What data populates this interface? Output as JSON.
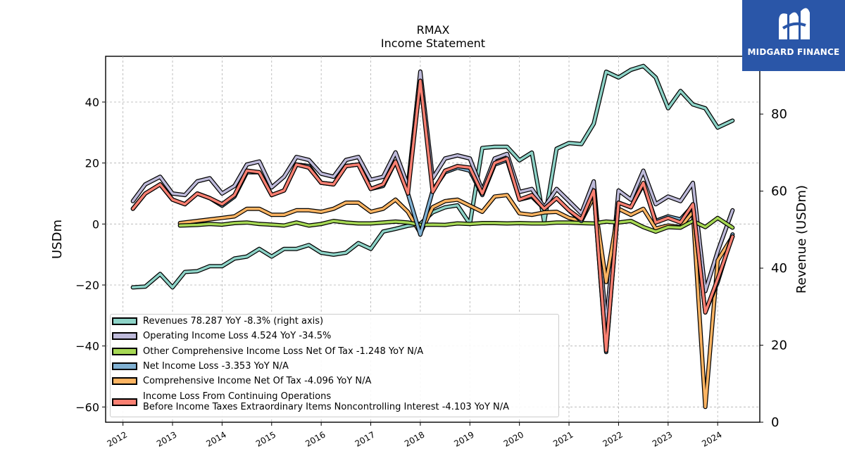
{
  "title": "RMAX",
  "subtitle": "Income Statement",
  "logo": {
    "text": "MIDGARD FINANCE"
  },
  "chart_data": {
    "type": "line",
    "ylabel": "USDm",
    "y2label": "Revenue (USDm)",
    "ylim": [
      -65,
      55
    ],
    "y2lim": [
      0,
      95
    ],
    "yticks": [
      -60,
      -40,
      -20,
      0,
      20,
      40
    ],
    "y2ticks": [
      0,
      20,
      40,
      60,
      80
    ],
    "xlim": [
      2011.65,
      2024.85
    ],
    "xticks": [
      2012,
      2013,
      2014,
      2015,
      2016,
      2017,
      2018,
      2019,
      2020,
      2021,
      2022,
      2023,
      2024
    ],
    "grid": true,
    "legend_position": "lower-left",
    "series": [
      {
        "name": "Revenues  78.287 YoY -8.3% (right axis)",
        "axis": "right",
        "color": "#8dd3c7",
        "x": [
          2012.2,
          2012.45,
          2012.75,
          2013.0,
          2013.25,
          2013.5,
          2013.75,
          2014.0,
          2014.25,
          2014.5,
          2014.75,
          2015.0,
          2015.25,
          2015.5,
          2015.75,
          2016.0,
          2016.25,
          2016.5,
          2016.75,
          2017.0,
          2017.25,
          2017.5,
          2017.75,
          2018.0,
          2018.25,
          2018.5,
          2018.75,
          2019.0,
          2019.25,
          2019.5,
          2019.75,
          2020.0,
          2020.25,
          2020.5,
          2020.75,
          2021.0,
          2021.25,
          2021.5,
          2021.75,
          2022.0,
          2022.25,
          2022.5,
          2022.75,
          2023.0,
          2023.25,
          2023.5,
          2023.75,
          2024.0,
          2024.3
        ],
        "values": [
          35,
          35.2,
          38.5,
          35,
          39,
          39.2,
          40.5,
          40.5,
          42.5,
          43,
          45,
          43,
          45,
          45,
          46,
          44,
          43.5,
          44,
          46.5,
          45,
          49.5,
          50.2,
          51,
          51.5,
          54.5,
          55.8,
          56.3,
          51.5,
          71.2,
          71.5,
          71.5,
          68,
          70,
          52,
          71,
          72.5,
          72.2,
          77.5,
          91,
          89.5,
          91.5,
          92.5,
          89.5,
          81.5,
          86,
          82.5,
          81.5,
          76.5,
          78.3
        ]
      },
      {
        "name": "Operating Income Loss  4.524 YoY -34.5%",
        "axis": "left",
        "color": "#bebada",
        "x": [
          2012.2,
          2012.45,
          2012.75,
          2013.0,
          2013.25,
          2013.5,
          2013.75,
          2014.0,
          2014.25,
          2014.5,
          2014.75,
          2015.0,
          2015.25,
          2015.5,
          2015.75,
          2016.0,
          2016.25,
          2016.5,
          2016.75,
          2017.0,
          2017.25,
          2017.5,
          2017.75,
          2018.0,
          2018.25,
          2018.5,
          2018.75,
          2019.0,
          2019.25,
          2019.5,
          2019.75,
          2020.0,
          2020.25,
          2020.5,
          2020.75,
          2021.0,
          2021.25,
          2021.5,
          2021.75,
          2022.0,
          2022.25,
          2022.5,
          2022.75,
          2023.0,
          2023.25,
          2023.5,
          2023.75,
          2024.0,
          2024.3
        ],
        "values": [
          7.5,
          13,
          15.5,
          10,
          9.5,
          14,
          15,
          10,
          12.5,
          19.5,
          20.5,
          12,
          15.5,
          22,
          21,
          16.5,
          15.5,
          21,
          22,
          14.5,
          15.5,
          23.5,
          12.5,
          50,
          15,
          21.5,
          22.5,
          21.5,
          11,
          21.5,
          23,
          10.5,
          11.5,
          5.5,
          11.5,
          7.5,
          3.5,
          14,
          -33,
          11,
          8,
          17.5,
          6.5,
          9,
          7.5,
          13.5,
          -22,
          -9,
          4.5
        ]
      },
      {
        "name": "Other Comprehensive Income Loss Net Of Tax  -1.248 YoY N/A",
        "axis": "left",
        "color": "#a6d854",
        "x": [
          2013.15,
          2013.5,
          2013.75,
          2014.0,
          2014.25,
          2014.5,
          2014.75,
          2015.0,
          2015.25,
          2015.5,
          2015.75,
          2016.0,
          2016.25,
          2016.5,
          2016.75,
          2017.0,
          2017.25,
          2017.5,
          2017.75,
          2018.0,
          2018.25,
          2018.5,
          2018.75,
          2019.0,
          2019.25,
          2019.5,
          2019.75,
          2020.0,
          2020.25,
          2020.5,
          2020.75,
          2021.0,
          2021.25,
          2021.5,
          2021.75,
          2022.0,
          2022.25,
          2022.5,
          2022.75,
          2023.0,
          2023.25,
          2023.5,
          2023.75,
          2024.0,
          2024.3
        ],
        "values": [
          -0.5,
          -0.3,
          0,
          -0.2,
          0.3,
          0.5,
          0,
          -0.2,
          -0.5,
          0.5,
          -0.5,
          0,
          1,
          0.5,
          0.2,
          0.2,
          0.5,
          0.8,
          0.5,
          -0.3,
          -0.2,
          -0.3,
          0.2,
          0,
          0.3,
          0.3,
          0.2,
          0.3,
          0.2,
          0.2,
          0.5,
          0.5,
          0.3,
          0.2,
          0.8,
          0.5,
          1,
          -1,
          -2.5,
          -1,
          -1.2,
          1,
          -1,
          2,
          -1.2
        ]
      },
      {
        "name": "Net Income Loss  -3.353 YoY N/A",
        "axis": "left",
        "color": "#80b1d3",
        "x": [
          2012.2,
          2012.45,
          2012.75,
          2013.0,
          2013.25,
          2013.5,
          2013.75,
          2014.0,
          2014.25,
          2014.5,
          2014.75,
          2015.0,
          2015.25,
          2015.5,
          2015.75,
          2016.0,
          2016.25,
          2016.5,
          2016.75,
          2017.0,
          2017.25,
          2017.5,
          2017.75,
          2018.0,
          2018.25,
          2018.5,
          2018.75,
          2019.0,
          2019.25,
          2019.5,
          2019.75,
          2020.0,
          2020.25,
          2020.5,
          2020.75,
          2021.0,
          2021.25,
          2021.5,
          2021.75,
          2022.0,
          2022.25,
          2022.5,
          2022.75,
          2023.0,
          2023.25,
          2023.5,
          2023.75,
          2024.0,
          2024.3
        ],
        "values": [
          5,
          10,
          13,
          8,
          6.5,
          10,
          8.5,
          6,
          9,
          17,
          17,
          9.5,
          11,
          19.5,
          19,
          13.5,
          13,
          19,
          19.5,
          11.5,
          12.5,
          20.5,
          10,
          -3.5,
          11,
          17,
          18.5,
          17.5,
          9.5,
          19.5,
          21,
          8,
          9,
          5,
          8.5,
          4.5,
          1,
          11,
          -42,
          7,
          5.5,
          13,
          1,
          2.5,
          1.5,
          6,
          -29,
          -19,
          -3.4
        ]
      },
      {
        "name": "Comprehensive Income Net Of Tax  -4.096 YoY N/A",
        "axis": "left",
        "color": "#fdb462",
        "x": [
          2013.15,
          2013.5,
          2013.75,
          2014.0,
          2014.25,
          2014.5,
          2014.75,
          2015.0,
          2015.25,
          2015.5,
          2015.75,
          2016.0,
          2016.25,
          2016.5,
          2016.75,
          2017.0,
          2017.25,
          2017.5,
          2017.75,
          2018.0,
          2018.25,
          2018.5,
          2018.75,
          2019.0,
          2019.25,
          2019.5,
          2019.75,
          2020.0,
          2020.25,
          2020.5,
          2020.75,
          2021.0,
          2021.25,
          2021.5,
          2021.75,
          2022.0,
          2022.25,
          2022.5,
          2022.75,
          2023.0,
          2023.25,
          2023.5,
          2023.75,
          2024.0,
          2024.3
        ],
        "values": [
          0.3,
          1,
          1.5,
          2,
          2.5,
          5,
          5,
          3,
          3,
          4.5,
          4.5,
          4,
          5,
          7,
          7,
          4,
          5,
          8,
          4,
          -3,
          5.5,
          7.5,
          8,
          6,
          4,
          9,
          9.5,
          3.5,
          3,
          3.8,
          4,
          2,
          1,
          9,
          -19,
          5,
          3,
          5,
          -1.5,
          -0.5,
          -1,
          4,
          -60,
          -12,
          -4.1
        ]
      },
      {
        "name": "Income Loss From Continuing Operations\nBefore Income Taxes Extraordinary Items Noncontrolling Interest  -4.103 YoY N/A",
        "axis": "left",
        "color": "#fb8072",
        "x": [
          2012.2,
          2012.45,
          2012.75,
          2013.0,
          2013.25,
          2013.5,
          2013.75,
          2014.0,
          2014.25,
          2014.5,
          2014.75,
          2015.0,
          2015.25,
          2015.5,
          2015.75,
          2016.0,
          2016.25,
          2016.5,
          2016.75,
          2017.0,
          2017.25,
          2017.5,
          2017.75,
          2018.0,
          2018.25,
          2018.5,
          2018.75,
          2019.0,
          2019.25,
          2019.5,
          2019.75,
          2020.0,
          2020.25,
          2020.5,
          2020.75,
          2021.0,
          2021.25,
          2021.5,
          2021.75,
          2022.0,
          2022.25,
          2022.5,
          2022.75,
          2023.0,
          2023.25,
          2023.5,
          2023.75,
          2024.0,
          2024.3
        ],
        "values": [
          5,
          10,
          13,
          8,
          6.5,
          10,
          8.5,
          6.5,
          9.5,
          17.5,
          17,
          9.5,
          11,
          19.5,
          18.5,
          13.5,
          13,
          19,
          19.5,
          11.5,
          13,
          20.5,
          10,
          47,
          10.5,
          17.5,
          19,
          18.5,
          10,
          20,
          21.5,
          8,
          9.5,
          5,
          8.5,
          4.5,
          1.5,
          11,
          -41.5,
          7,
          5.5,
          13.5,
          0.5,
          2,
          0.5,
          6.5,
          -29,
          -18,
          -4.1
        ]
      }
    ]
  }
}
